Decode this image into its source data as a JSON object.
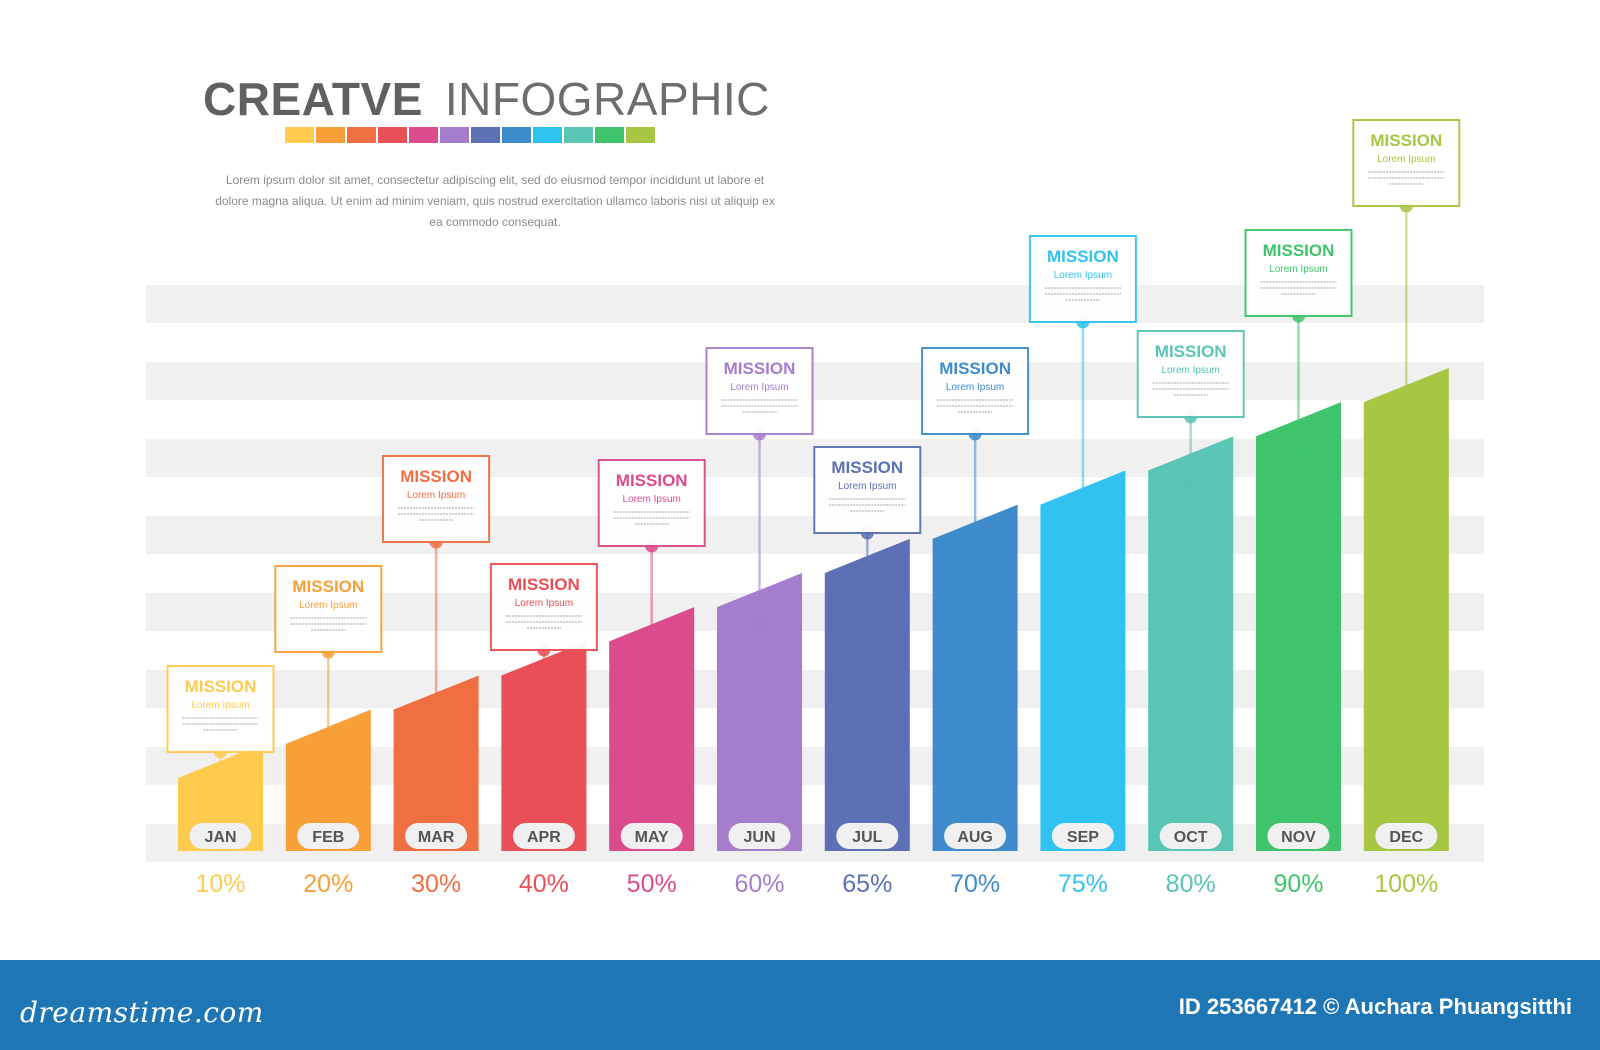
{
  "header": {
    "title_bold": "CREATVE",
    "title_light": "INFOGRAPHIC",
    "description": "Lorem ipsum dolor sit amet, consectetur adipiscing elit, sed do eiusmod tempor incididunt ut labore et dolore magna aliqua. Ut enim ad minim veniam, quis nostrud exercitation ullamco laboris nisi ut aliquip ex ea commodo consequat."
  },
  "swatch_colors": [
    "#fecb4f",
    "#f8a037",
    "#f16e42",
    "#e94f56",
    "#dc4b8b",
    "#a47dcc",
    "#5c70b5",
    "#3f8ccc",
    "#30c3f0",
    "#59c5b4",
    "#3fc46b",
    "#a7c641"
  ],
  "chart_data": {
    "type": "bar",
    "title": "",
    "categories": [
      "JAN",
      "FEB",
      "MAR",
      "APR",
      "MAY",
      "JUN",
      "JUL",
      "AUG",
      "SEP",
      "OCT",
      "NOV",
      "DEC"
    ],
    "values": [
      10,
      20,
      30,
      40,
      50,
      60,
      65,
      70,
      75,
      80,
      90,
      100
    ],
    "value_labels": [
      "10%",
      "20%",
      "30%",
      "40%",
      "50%",
      "60%",
      "65%",
      "70%",
      "75%",
      "80%",
      "90%",
      "100%"
    ],
    "colors": [
      "#fecb4f",
      "#f8a037",
      "#f16e42",
      "#e94f56",
      "#dc4b8b",
      "#a47dcc",
      "#5c70b5",
      "#3f8ccc",
      "#30c3f0",
      "#59c5b4",
      "#3fc46b",
      "#a7c641"
    ],
    "callouts": [
      {
        "title": "MISSION",
        "subtitle": "Lorem Ipsum"
      },
      {
        "title": "MISSION",
        "subtitle": "Lorem Ipsum"
      },
      {
        "title": "MISSION",
        "subtitle": "Lorem Ipsum"
      },
      {
        "title": "MISSION",
        "subtitle": "Lorem Ipsum"
      },
      {
        "title": "MISSION",
        "subtitle": "Lorem Ipsum"
      },
      {
        "title": "MISSION",
        "subtitle": "Lorem Ipsum"
      },
      {
        "title": "MISSION",
        "subtitle": "Lorem Ipsum"
      },
      {
        "title": "MISSION",
        "subtitle": "Lorem Ipsum"
      },
      {
        "title": "MISSION",
        "subtitle": "Lorem Ipsum"
      },
      {
        "title": "MISSION",
        "subtitle": "Lorem Ipsum"
      },
      {
        "title": "MISSION",
        "subtitle": "Lorem Ipsum"
      },
      {
        "title": "MISSION",
        "subtitle": "Lorem Ipsum"
      }
    ],
    "background_stripes": true,
    "legend": "none"
  },
  "footer": {
    "logo": "dreamstime.com",
    "credit": "ID 253667412 © Auchara Phuangsitthi"
  }
}
